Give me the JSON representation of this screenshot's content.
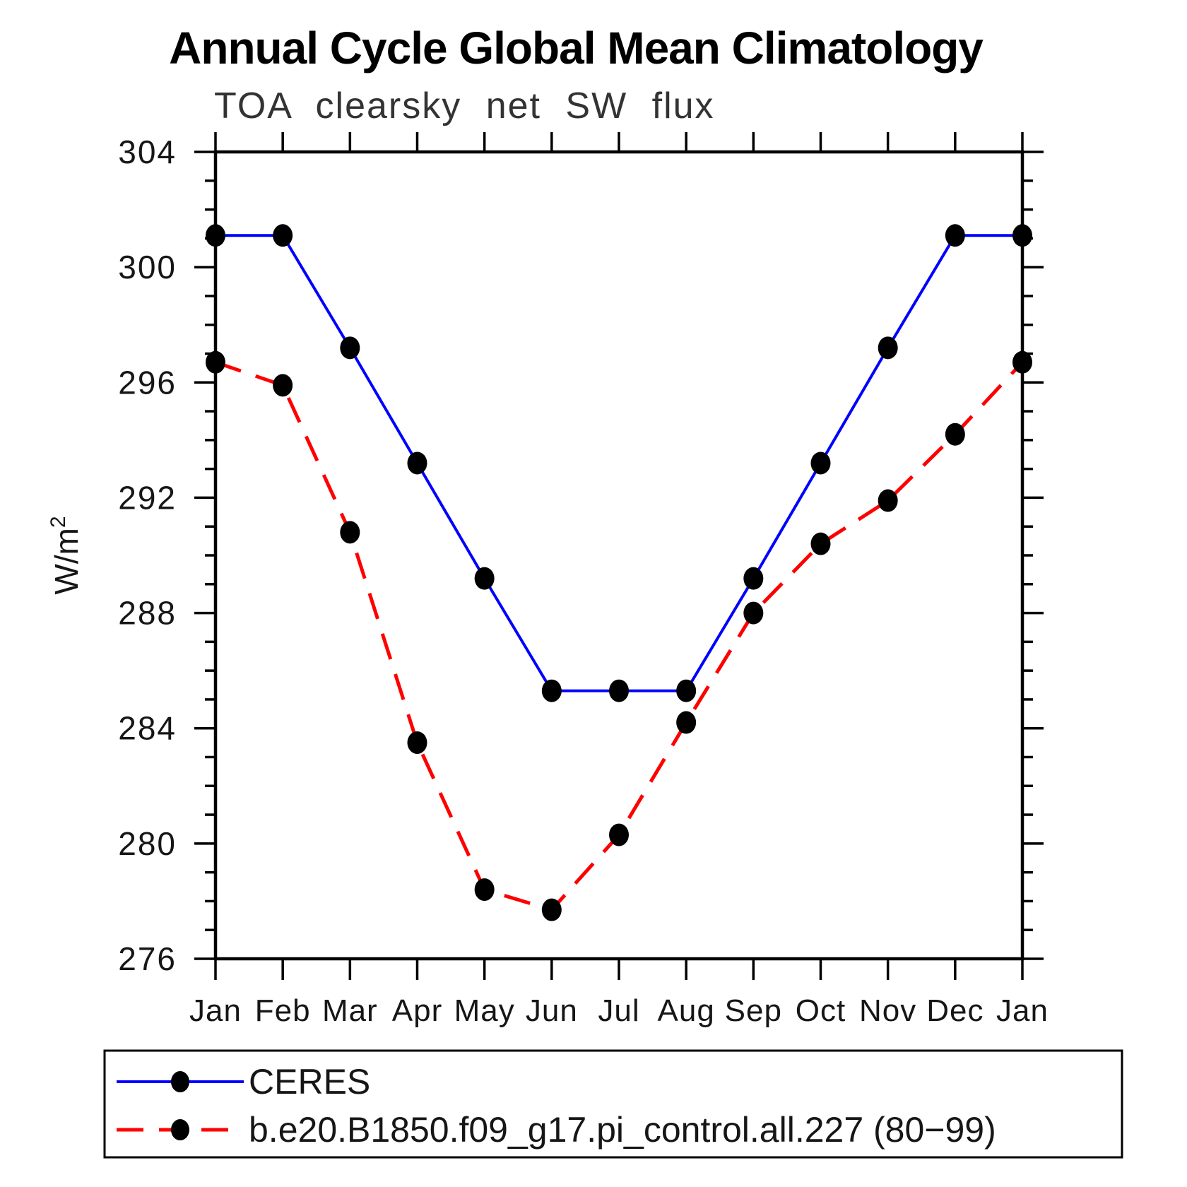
{
  "header": {
    "title": "Annual Cycle Global Mean Climatology",
    "subtitle": "TOA clearsky net SW flux"
  },
  "axis": {
    "ylabel_base": "W/m",
    "ylabel_sup": "2"
  },
  "chart_data": {
    "type": "line",
    "title": "Annual Cycle Global Mean Climatology",
    "subtitle": "TOA clearsky net SW flux",
    "ylabel": "W/m2",
    "xlabel": "",
    "categories": [
      "Jan",
      "Feb",
      "Mar",
      "Apr",
      "May",
      "Jun",
      "Jul",
      "Aug",
      "Sep",
      "Oct",
      "Nov",
      "Dec",
      "Jan"
    ],
    "ylim": [
      276,
      304
    ],
    "y_major_step": 4,
    "y_minor_step": 1,
    "grid": false,
    "legend_position": "bottom",
    "colors": {
      "ceres_line": "#0000ff",
      "model_line": "#ff0000",
      "marker": "#000000",
      "axis": "#000000"
    },
    "series": [
      {
        "name": "CERES",
        "style": "solid",
        "marker": "filled-circle",
        "values": [
          301.1,
          301.1,
          297.2,
          293.2,
          289.2,
          285.3,
          285.3,
          285.3,
          289.2,
          293.2,
          297.2,
          301.1,
          301.1
        ]
      },
      {
        "name": "b.e20.B1850.f09_g17.pi_control.all.227 (80−99)",
        "style": "dashed",
        "marker": "filled-circle",
        "values": [
          296.7,
          295.9,
          290.8,
          283.5,
          278.4,
          277.7,
          280.3,
          284.2,
          288.0,
          290.4,
          291.9,
          294.2,
          296.7
        ]
      }
    ]
  }
}
